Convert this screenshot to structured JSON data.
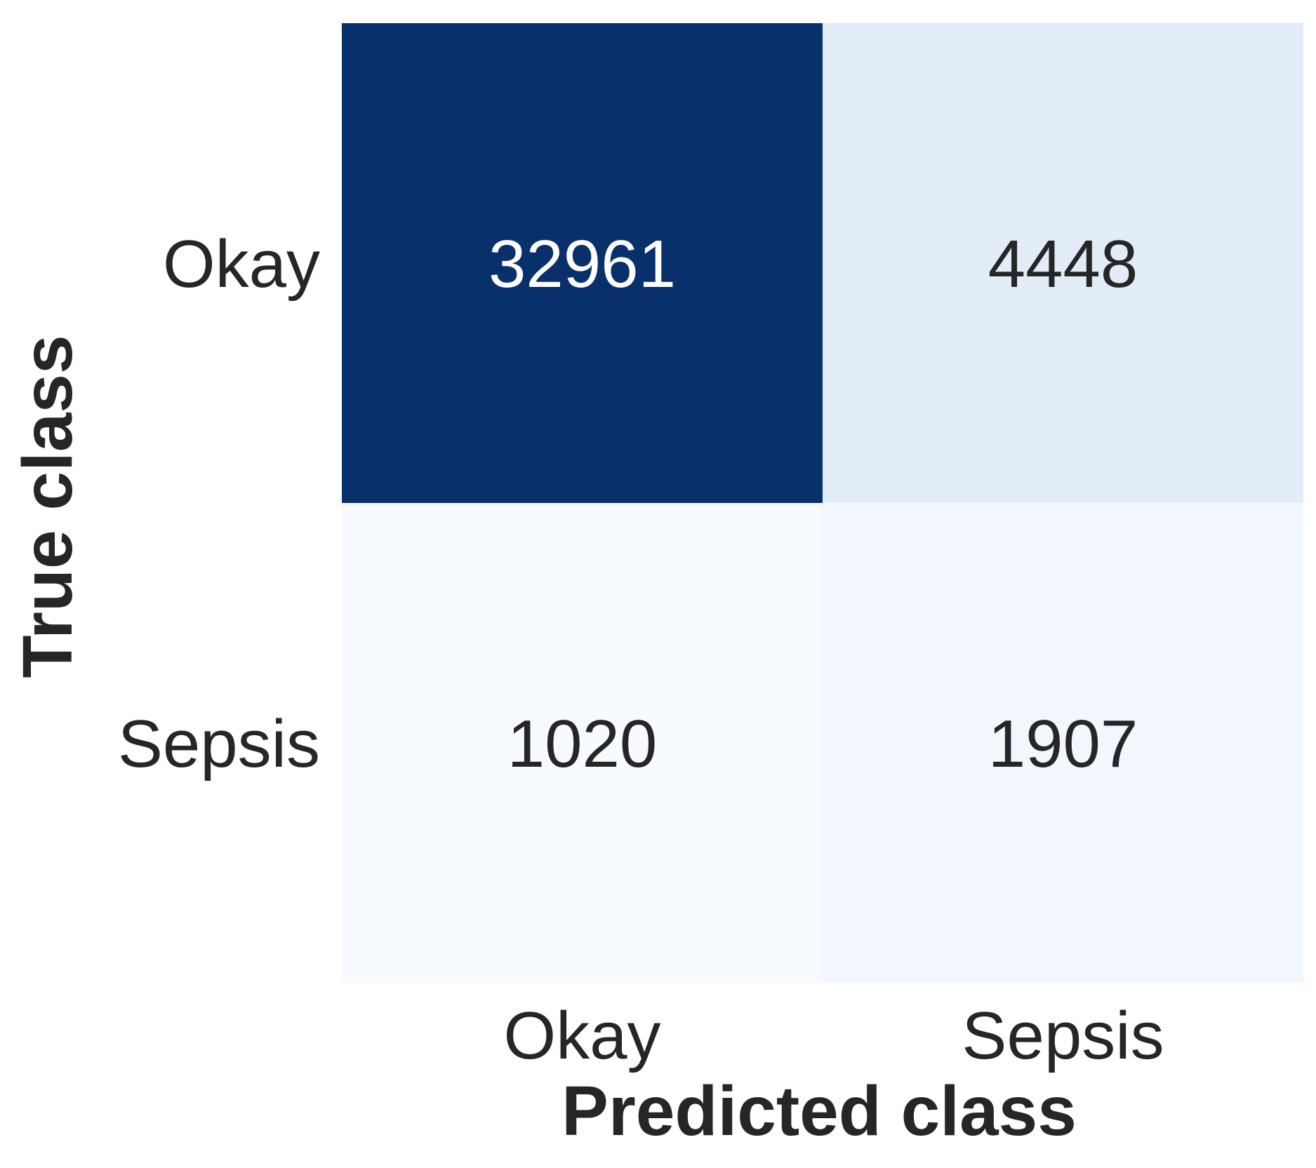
{
  "chart_data": {
    "type": "heatmap",
    "title": "",
    "xlabel": "Predicted class",
    "ylabel": "True class",
    "x_categories": [
      "Okay",
      "Sepsis"
    ],
    "y_categories": [
      "Okay",
      "Sepsis"
    ],
    "values": [
      [
        32961,
        4448
      ],
      [
        1020,
        1907
      ]
    ],
    "cell_labels": [
      [
        "32961",
        "4448"
      ],
      [
        "1020",
        "1907"
      ]
    ],
    "colormap": "Blues",
    "colorbar": false,
    "grid": false,
    "colors": {
      "low": "#f7fbff",
      "high": "#08306b",
      "text_dark": "#262626",
      "text_light": "#ffffff"
    }
  }
}
